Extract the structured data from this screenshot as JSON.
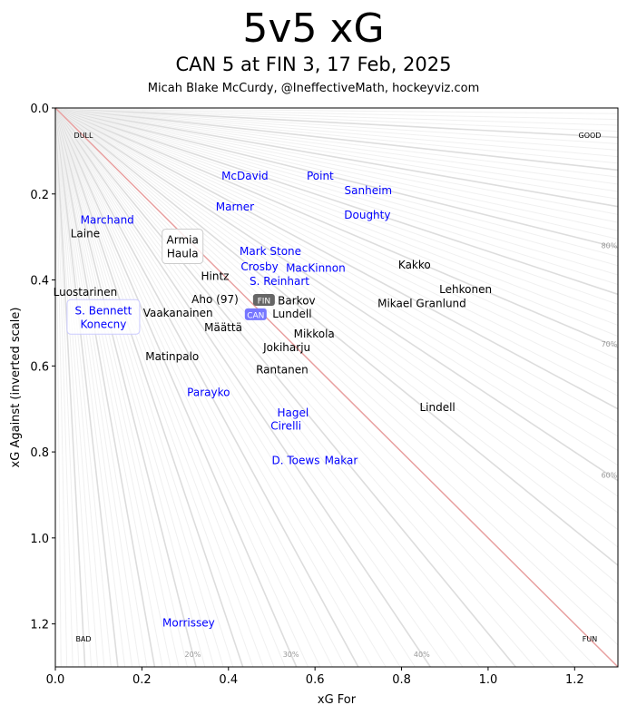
{
  "chart_data": {
    "type": "scatter",
    "title": "5v5 xG",
    "subtitle": "CAN 5 at FIN 3, 17 Feb, 2025",
    "credit": "Micah Blake McCurdy, @IneffectiveMath, hockeyviz.com",
    "xlabel": "xG For",
    "ylabel": "xG Against (inverted scale)",
    "xlim": [
      0,
      1.3
    ],
    "ylim": [
      1.3,
      0
    ],
    "xticks": [
      "0.0",
      "0.2",
      "0.4",
      "0.6",
      "0.8",
      "1.0",
      "1.2"
    ],
    "yticks": [
      "0.0",
      "0.2",
      "0.4",
      "0.6",
      "0.8",
      "1.0",
      "1.2"
    ],
    "corner_labels": {
      "top_left": "DULL",
      "top_right": "GOOD",
      "bottom_left": "BAD",
      "bottom_right": "FUN"
    },
    "percent_labels": [
      "20%",
      "30%",
      "40%",
      "60%",
      "70%",
      "80%"
    ],
    "colors": {
      "CAN": "#0000ff",
      "FIN": "#000000",
      "CAN_badge": "#7777ff",
      "FIN_badge": "#666666",
      "diagonal": "#e8a0a0"
    },
    "teams": [
      {
        "name": "FIN",
        "xgf": 0.482,
        "xga": 0.46
      },
      {
        "name": "CAN",
        "xgf": 0.463,
        "xga": 0.481
      }
    ],
    "players": [
      {
        "name": "McDavid",
        "team": "CAN",
        "xgf": 0.438,
        "xga": 0.158
      },
      {
        "name": "Point",
        "team": "CAN",
        "xgf": 0.612,
        "xga": 0.158
      },
      {
        "name": "Sanheim",
        "team": "CAN",
        "xgf": 0.723,
        "xga": 0.192
      },
      {
        "name": "Doughty",
        "team": "CAN",
        "xgf": 0.721,
        "xga": 0.249
      },
      {
        "name": "Marchand",
        "team": "CAN",
        "xgf": 0.12,
        "xga": 0.261
      },
      {
        "name": "Laine",
        "team": "FIN",
        "xgf": 0.069,
        "xga": 0.278
      },
      {
        "name": "Marner",
        "team": "CAN",
        "xgf": 0.415,
        "xga": 0.23
      },
      {
        "name": "Armia\nHaula",
        "team": "FIN",
        "xgf": 0.294,
        "xga": 0.323,
        "boxed": true
      },
      {
        "name": "Mark Stone",
        "team": "CAN",
        "xgf": 0.497,
        "xga": 0.333
      },
      {
        "name": "Crosby",
        "team": "CAN",
        "xgf": 0.497,
        "xga": 0.369
      },
      {
        "name": "MacKinnon",
        "team": "CAN",
        "xgf": 0.589,
        "xga": 0.373
      },
      {
        "name": "S. Reinhart",
        "team": "CAN",
        "xgf": 0.518,
        "xga": 0.403
      },
      {
        "name": "Kakko",
        "team": "FIN",
        "xgf": 0.83,
        "xga": 0.365
      },
      {
        "name": "Lehkonen",
        "team": "FIN",
        "xgf": 0.948,
        "xga": 0.422
      },
      {
        "name": "Mikael Granlund",
        "team": "FIN",
        "xgf": 0.847,
        "xga": 0.455
      },
      {
        "name": "Hintz",
        "team": "FIN",
        "xgf": 0.369,
        "xga": 0.392
      },
      {
        "name": "Luostarinen",
        "team": "FIN",
        "xgf": 0.069,
        "xga": 0.428
      },
      {
        "name": "Aho (97)",
        "team": "FIN",
        "xgf": 0.369,
        "xga": 0.445
      },
      {
        "name": "S. Bennett\nKonecny",
        "team": "CAN",
        "xgf": 0.111,
        "xga": 0.487,
        "boxed": true
      },
      {
        "name": "Vaakanainen",
        "team": "FIN",
        "xgf": 0.317,
        "xga": 0.477
      },
      {
        "name": "Määttä",
        "team": "FIN",
        "xgf": 0.388,
        "xga": 0.485
      },
      {
        "name": "Barkov",
        "team": "FIN",
        "xgf": 0.524,
        "xga": 0.455
      },
      {
        "name": "Lundell",
        "team": "FIN",
        "xgf": 0.547,
        "xga": 0.479
      },
      {
        "name": "Mikkola",
        "team": "FIN",
        "xgf": 0.598,
        "xga": 0.525
      },
      {
        "name": "Jokiharju",
        "team": "FIN",
        "xgf": 0.535,
        "xga": 0.557
      },
      {
        "name": "Matinpalo",
        "team": "FIN",
        "xgf": 0.27,
        "xga": 0.578
      },
      {
        "name": "Rantanen",
        "team": "FIN",
        "xgf": 0.524,
        "xga": 0.609
      },
      {
        "name": "Parayko",
        "team": "CAN",
        "xgf": 0.354,
        "xga": 0.662
      },
      {
        "name": "Lindell",
        "team": "FIN",
        "xgf": 0.883,
        "xga": 0.696
      },
      {
        "name": "Hagel",
        "team": "CAN",
        "xgf": 0.549,
        "xga": 0.709
      },
      {
        "name": "Cirelli",
        "team": "CAN",
        "xgf": 0.533,
        "xga": 0.74
      },
      {
        "name": "D. Toews",
        "team": "CAN",
        "xgf": 0.585,
        "xga": 0.82
      },
      {
        "name": "Makar",
        "team": "CAN",
        "xgf": 0.631,
        "xga": 0.82
      },
      {
        "name": "Morrissey",
        "team": "CAN",
        "xgf": 0.308,
        "xga": 1.198
      }
    ]
  }
}
